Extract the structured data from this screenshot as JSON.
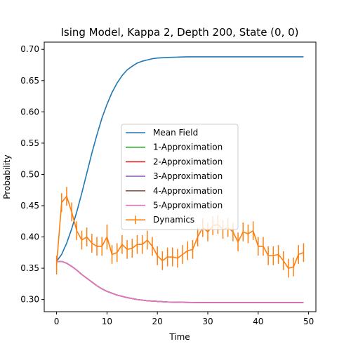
{
  "chart_data": {
    "type": "line",
    "title": "Ising Model, Kappa 2, Depth 200, State (0, 0)",
    "xlabel": "Time",
    "ylabel": "Probability",
    "xlim": [
      -2.45,
      51.45
    ],
    "ylim": [
      0.2805,
      0.7115
    ],
    "xticks": [
      0,
      10,
      20,
      30,
      40,
      50
    ],
    "yticks": [
      0.3,
      0.35,
      0.4,
      0.45,
      0.5,
      0.55,
      0.6,
      0.65,
      0.7
    ],
    "ytick_labels": [
      "0.30",
      "0.35",
      "0.40",
      "0.45",
      "0.50",
      "0.55",
      "0.60",
      "0.65",
      "0.70"
    ],
    "grid": false,
    "legend_position": "center",
    "series": [
      {
        "name": "Mean Field",
        "color": "#1f77b4",
        "kind": "line",
        "x": [
          0,
          1,
          2,
          3,
          4,
          5,
          6,
          7,
          8,
          9,
          10,
          11,
          12,
          13,
          14,
          15,
          16,
          17,
          18,
          19,
          20,
          22,
          24,
          26,
          28,
          30,
          35,
          40,
          45,
          49
        ],
        "y": [
          0.361,
          0.372,
          0.39,
          0.413,
          0.44,
          0.47,
          0.502,
          0.534,
          0.563,
          0.59,
          0.612,
          0.631,
          0.646,
          0.658,
          0.667,
          0.673,
          0.678,
          0.681,
          0.683,
          0.685,
          0.686,
          0.687,
          0.6875,
          0.688,
          0.688,
          0.688,
          0.688,
          0.688,
          0.688,
          0.688
        ]
      },
      {
        "name": "1-Approximation",
        "color": "#2ca02c",
        "kind": "line",
        "x": [
          0,
          1,
          2,
          3,
          4,
          5,
          6,
          7,
          8,
          9,
          10,
          12,
          14,
          16,
          18,
          20,
          22,
          25,
          30,
          35,
          40,
          45,
          49
        ],
        "y": [
          0.361,
          0.361,
          0.358,
          0.353,
          0.347,
          0.34,
          0.334,
          0.328,
          0.322,
          0.317,
          0.313,
          0.307,
          0.303,
          0.3,
          0.298,
          0.297,
          0.296,
          0.2955,
          0.295,
          0.295,
          0.295,
          0.295,
          0.295
        ]
      },
      {
        "name": "2-Approximation",
        "color": "#d62728",
        "kind": "line",
        "x": [
          0,
          1,
          2,
          3,
          4,
          5,
          6,
          7,
          8,
          9,
          10,
          12,
          14,
          16,
          18,
          20,
          22,
          25,
          30,
          35,
          40,
          45,
          49
        ],
        "y": [
          0.361,
          0.361,
          0.358,
          0.353,
          0.347,
          0.34,
          0.334,
          0.328,
          0.322,
          0.317,
          0.313,
          0.307,
          0.303,
          0.3,
          0.298,
          0.297,
          0.296,
          0.2955,
          0.295,
          0.295,
          0.295,
          0.295,
          0.295
        ]
      },
      {
        "name": "3-Approximation",
        "color": "#9467bd",
        "kind": "line",
        "x": [
          0,
          1,
          2,
          3,
          4,
          5,
          6,
          7,
          8,
          9,
          10,
          12,
          14,
          16,
          18,
          20,
          22,
          25,
          30,
          35,
          40,
          45,
          49
        ],
        "y": [
          0.361,
          0.361,
          0.358,
          0.353,
          0.347,
          0.34,
          0.334,
          0.328,
          0.322,
          0.317,
          0.313,
          0.307,
          0.303,
          0.3,
          0.298,
          0.297,
          0.296,
          0.2955,
          0.295,
          0.295,
          0.295,
          0.295,
          0.295
        ]
      },
      {
        "name": "4-Approximation",
        "color": "#8c564b",
        "kind": "line",
        "x": [
          0,
          1,
          2,
          3,
          4,
          5,
          6,
          7,
          8,
          9,
          10,
          12,
          14,
          16,
          18,
          20,
          22,
          25,
          30,
          35,
          40,
          45,
          49
        ],
        "y": [
          0.361,
          0.361,
          0.358,
          0.353,
          0.347,
          0.34,
          0.334,
          0.328,
          0.322,
          0.317,
          0.313,
          0.307,
          0.303,
          0.3,
          0.298,
          0.297,
          0.296,
          0.2955,
          0.295,
          0.295,
          0.295,
          0.295,
          0.295
        ]
      },
      {
        "name": "5-Approximation",
        "color": "#e377c2",
        "kind": "line",
        "x": [
          0,
          1,
          2,
          3,
          4,
          5,
          6,
          7,
          8,
          9,
          10,
          12,
          14,
          16,
          18,
          20,
          22,
          25,
          30,
          35,
          40,
          45,
          49
        ],
        "y": [
          0.361,
          0.361,
          0.358,
          0.353,
          0.347,
          0.34,
          0.334,
          0.328,
          0.322,
          0.317,
          0.313,
          0.307,
          0.303,
          0.3,
          0.298,
          0.297,
          0.296,
          0.2955,
          0.295,
          0.295,
          0.295,
          0.295,
          0.295
        ]
      },
      {
        "name": "Dynamics",
        "color": "#ff7f0e",
        "kind": "errorbar",
        "x": [
          0,
          1,
          2,
          3,
          4,
          5,
          6,
          7,
          8,
          9,
          10,
          11,
          12,
          13,
          14,
          15,
          16,
          17,
          18,
          19,
          20,
          21,
          22,
          23,
          24,
          25,
          26,
          27,
          28,
          29,
          30,
          31,
          32,
          33,
          34,
          35,
          36,
          37,
          38,
          39,
          40,
          41,
          42,
          43,
          44,
          45,
          46,
          47,
          48,
          49
        ],
        "y": [
          0.355,
          0.455,
          0.465,
          0.44,
          0.41,
          0.395,
          0.4,
          0.39,
          0.385,
          0.385,
          0.4,
          0.372,
          0.375,
          0.388,
          0.38,
          0.382,
          0.388,
          0.388,
          0.395,
          0.385,
          0.37,
          0.362,
          0.368,
          0.368,
          0.366,
          0.372,
          0.378,
          0.38,
          0.4,
          0.415,
          0.408,
          0.418,
          0.42,
          0.412,
          0.415,
          0.408,
          0.392,
          0.408,
          0.405,
          0.41,
          0.385,
          0.385,
          0.37,
          0.37,
          0.372,
          0.362,
          0.35,
          0.352,
          0.372,
          0.375
        ],
        "yerr": [
          0.015,
          0.015,
          0.015,
          0.015,
          0.015,
          0.015,
          0.015,
          0.015,
          0.015,
          0.015,
          0.02,
          0.015,
          0.015,
          0.015,
          0.015,
          0.015,
          0.015,
          0.015,
          0.015,
          0.015,
          0.015,
          0.015,
          0.015,
          0.015,
          0.015,
          0.015,
          0.015,
          0.015,
          0.015,
          0.015,
          0.015,
          0.015,
          0.015,
          0.015,
          0.015,
          0.015,
          0.015,
          0.015,
          0.015,
          0.015,
          0.015,
          0.015,
          0.015,
          0.015,
          0.015,
          0.015,
          0.015,
          0.015,
          0.015,
          0.015
        ]
      }
    ]
  }
}
